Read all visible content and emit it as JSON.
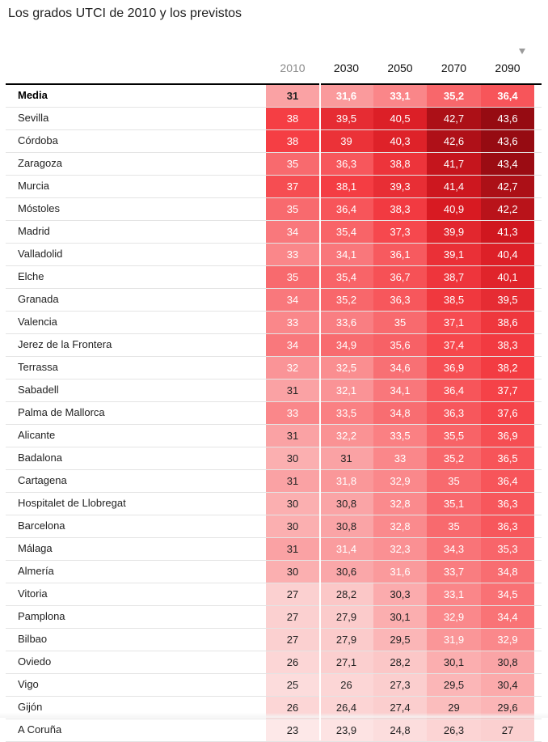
{
  "title": "Los grados UTCI de 2010 y los previstos",
  "colors": {
    "low": "#fde5e5",
    "high": "#8e0a10",
    "text_dark": "#222222",
    "text_light": "#ffffff",
    "header_dim": "#8a8a8a"
  },
  "sort_icon": "sort-descending-icon",
  "chart_data": {
    "type": "table",
    "title": "Los grados UTCI de 2010 y los previstos",
    "columns": [
      "2010",
      "2030",
      "2050",
      "2070",
      "2090"
    ],
    "sorted_by": "2090",
    "rows": [
      {
        "city": "Media",
        "values": [
          "31",
          "31,6",
          "33,1",
          "35,2",
          "36,4"
        ]
      },
      {
        "city": "Sevilla",
        "values": [
          "38",
          "39,5",
          "40,5",
          "42,7",
          "43,6"
        ]
      },
      {
        "city": "Córdoba",
        "values": [
          "38",
          "39",
          "40,3",
          "42,6",
          "43,6"
        ]
      },
      {
        "city": "Zaragoza",
        "values": [
          "35",
          "36,3",
          "38,8",
          "41,7",
          "43,4"
        ]
      },
      {
        "city": "Murcia",
        "values": [
          "37",
          "38,1",
          "39,3",
          "41,4",
          "42,7"
        ]
      },
      {
        "city": "Móstoles",
        "values": [
          "35",
          "36,4",
          "38,3",
          "40,9",
          "42,2"
        ]
      },
      {
        "city": "Madrid",
        "values": [
          "34",
          "35,4",
          "37,3",
          "39,9",
          "41,3"
        ]
      },
      {
        "city": "Valladolid",
        "values": [
          "33",
          "34,1",
          "36,1",
          "39,1",
          "40,4"
        ]
      },
      {
        "city": "Elche",
        "values": [
          "35",
          "35,4",
          "36,7",
          "38,7",
          "40,1"
        ]
      },
      {
        "city": "Granada",
        "values": [
          "34",
          "35,2",
          "36,3",
          "38,5",
          "39,5"
        ]
      },
      {
        "city": "Valencia",
        "values": [
          "33",
          "33,6",
          "35",
          "37,1",
          "38,6"
        ]
      },
      {
        "city": "Jerez de la Frontera",
        "values": [
          "34",
          "34,9",
          "35,6",
          "37,4",
          "38,3"
        ]
      },
      {
        "city": "Terrassa",
        "values": [
          "32",
          "32,5",
          "34,6",
          "36,9",
          "38,2"
        ]
      },
      {
        "city": "Sabadell",
        "values": [
          "31",
          "32,1",
          "34,1",
          "36,4",
          "37,7"
        ]
      },
      {
        "city": "Palma de Mallorca",
        "values": [
          "33",
          "33,5",
          "34,8",
          "36,3",
          "37,6"
        ]
      },
      {
        "city": "Alicante",
        "values": [
          "31",
          "32,2",
          "33,5",
          "35,5",
          "36,9"
        ]
      },
      {
        "city": "Badalona",
        "values": [
          "30",
          "31",
          "33",
          "35,2",
          "36,5"
        ]
      },
      {
        "city": "Cartagena",
        "values": [
          "31",
          "31,8",
          "32,9",
          "35",
          "36,4"
        ]
      },
      {
        "city": "Hospitalet de Llobregat",
        "values": [
          "30",
          "30,8",
          "32,8",
          "35,1",
          "36,3"
        ]
      },
      {
        "city": "Barcelona",
        "values": [
          "30",
          "30,8",
          "32,8",
          "35",
          "36,3"
        ]
      },
      {
        "city": "Málaga",
        "values": [
          "31",
          "31,4",
          "32,3",
          "34,3",
          "35,3"
        ]
      },
      {
        "city": "Almería",
        "values": [
          "30",
          "30,6",
          "31,6",
          "33,7",
          "34,8"
        ]
      },
      {
        "city": "Vitoria",
        "values": [
          "27",
          "28,2",
          "30,3",
          "33,1",
          "34,5"
        ]
      },
      {
        "city": "Pamplona",
        "values": [
          "27",
          "27,9",
          "30,1",
          "32,9",
          "34,4"
        ]
      },
      {
        "city": "Bilbao",
        "values": [
          "27",
          "27,9",
          "29,5",
          "31,9",
          "32,9"
        ]
      },
      {
        "city": "Oviedo",
        "values": [
          "26",
          "27,1",
          "28,2",
          "30,1",
          "30,8"
        ]
      },
      {
        "city": "Vigo",
        "values": [
          "25",
          "26",
          "27,3",
          "29,5",
          "30,4"
        ]
      },
      {
        "city": "Gijón",
        "values": [
          "26",
          "26,4",
          "27,4",
          "29",
          "29,6"
        ]
      },
      {
        "city": "A Coruña",
        "values": [
          "23",
          "23,9",
          "24,8",
          "26,3",
          "27"
        ]
      }
    ]
  }
}
